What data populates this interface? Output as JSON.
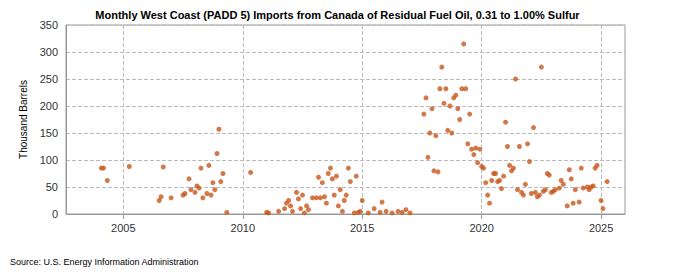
{
  "chart_data": {
    "type": "scatter",
    "title": "Monthly West Coast (PADD 5) Imports from Canada of Residual Fuel Oil, 0.31 to 1.00% Sulfur",
    "ylabel": "Thousand Barrels",
    "source": "Source: U.S. Energy Information Administration",
    "color": "#c8561a",
    "marker": "circle",
    "grid": true,
    "xlim": [
      2002.6,
      2026
    ],
    "xticks": [
      2005,
      2010,
      2015,
      2020,
      2025
    ],
    "ylim": [
      0,
      350
    ],
    "yticks": [
      0,
      50,
      100,
      150,
      200,
      250,
      300,
      350
    ],
    "x": [
      2004.08,
      2004.17,
      2004.33,
      2005.25,
      2006.5,
      2006.58,
      2006.67,
      2007.0,
      2007.5,
      2007.58,
      2007.75,
      2007.83,
      2008.0,
      2008.08,
      2008.17,
      2008.25,
      2008.33,
      2008.5,
      2008.58,
      2008.67,
      2008.75,
      2008.83,
      2008.92,
      2009.0,
      2009.08,
      2009.17,
      2009.33,
      2010.33,
      2011.0,
      2011.08,
      2011.5,
      2011.75,
      2011.83,
      2011.92,
      2012.0,
      2012.08,
      2012.25,
      2012.33,
      2012.42,
      2012.5,
      2012.58,
      2012.67,
      2012.75,
      2012.92,
      2013.08,
      2013.17,
      2013.25,
      2013.33,
      2013.42,
      2013.5,
      2013.58,
      2013.67,
      2013.75,
      2013.83,
      2013.92,
      2014.0,
      2014.08,
      2014.17,
      2014.25,
      2014.33,
      2014.42,
      2014.5,
      2014.67,
      2014.75,
      2014.83,
      2014.92,
      2015.0,
      2015.25,
      2015.5,
      2015.75,
      2015.83,
      2016.0,
      2016.25,
      2016.5,
      2016.67,
      2016.83,
      2017.0,
      2017.58,
      2017.67,
      2017.75,
      2017.83,
      2017.92,
      2018.0,
      2018.08,
      2018.17,
      2018.25,
      2018.33,
      2018.42,
      2018.5,
      2018.58,
      2018.67,
      2018.75,
      2018.83,
      2018.92,
      2019.0,
      2019.08,
      2019.17,
      2019.25,
      2019.33,
      2019.42,
      2019.5,
      2019.58,
      2019.67,
      2019.75,
      2019.83,
      2019.92,
      2020.0,
      2020.08,
      2020.17,
      2020.25,
      2020.33,
      2020.42,
      2020.5,
      2020.58,
      2020.67,
      2020.75,
      2020.83,
      2020.92,
      2021.0,
      2021.08,
      2021.17,
      2021.25,
      2021.33,
      2021.42,
      2021.5,
      2021.58,
      2021.67,
      2021.75,
      2021.83,
      2021.92,
      2022.0,
      2022.08,
      2022.17,
      2022.25,
      2022.33,
      2022.42,
      2022.5,
      2022.58,
      2022.67,
      2022.75,
      2022.83,
      2022.92,
      2023.0,
      2023.08,
      2023.25,
      2023.33,
      2023.42,
      2023.58,
      2023.67,
      2023.75,
      2023.83,
      2023.92,
      2024.08,
      2024.17,
      2024.25,
      2024.42,
      2024.5,
      2024.58,
      2024.67,
      2024.75,
      2024.83,
      2025.0,
      2025.08,
      2025.25
    ],
    "values": [
      85,
      85,
      62,
      88,
      25,
      32,
      87,
      30,
      35,
      38,
      65,
      45,
      40,
      52,
      48,
      85,
      30,
      38,
      90,
      35,
      58,
      45,
      112,
      157,
      60,
      75,
      3,
      77,
      3,
      2,
      5,
      10,
      20,
      25,
      15,
      5,
      40,
      28,
      10,
      35,
      2,
      15,
      8,
      30,
      30,
      68,
      30,
      58,
      32,
      20,
      75,
      85,
      65,
      35,
      70,
      15,
      45,
      5,
      25,
      35,
      85,
      60,
      2,
      70,
      3,
      5,
      25,
      2,
      10,
      3,
      22,
      5,
      2,
      5,
      3,
      8,
      2,
      185,
      215,
      105,
      150,
      195,
      80,
      145,
      78,
      232,
      272,
      205,
      232,
      155,
      200,
      150,
      215,
      220,
      195,
      175,
      232,
      315,
      232,
      130,
      185,
      120,
      110,
      122,
      95,
      120,
      88,
      85,
      58,
      35,
      20,
      62,
      75,
      75,
      60,
      62,
      47,
      70,
      170,
      125,
      90,
      80,
      85,
      250,
      45,
      125,
      40,
      35,
      55,
      130,
      97,
      38,
      160,
      40,
      32,
      35,
      272,
      42,
      45,
      75,
      72,
      40,
      42,
      45,
      48,
      62,
      55,
      15,
      82,
      65,
      20,
      45,
      22,
      85,
      48,
      50,
      45,
      50,
      52,
      85,
      90,
      25,
      10,
      60
    ]
  }
}
